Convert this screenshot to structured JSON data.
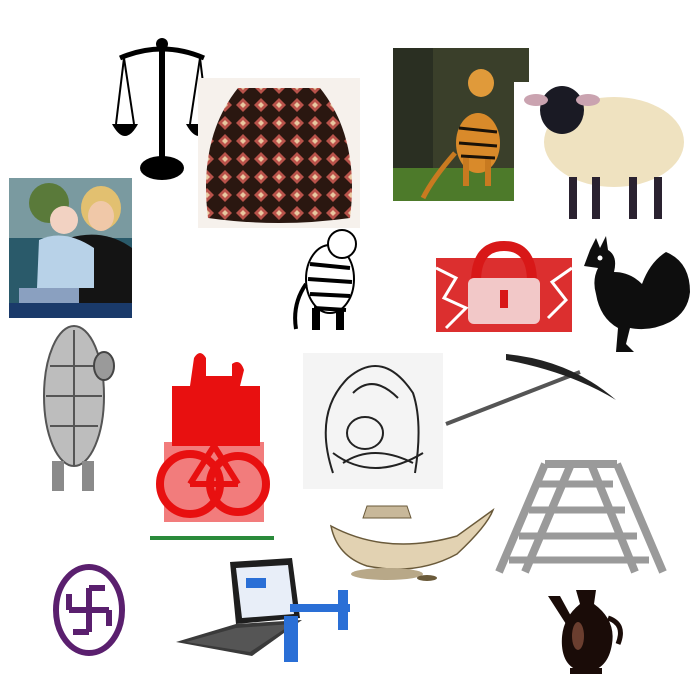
{
  "items": [
    {
      "name": "scales-of-justice-icon"
    },
    {
      "name": "patterned-cap-photo"
    },
    {
      "name": "tiger-photo"
    },
    {
      "name": "sheep-illustration"
    },
    {
      "name": "mother-and-baby-photo"
    },
    {
      "name": "tiger-sketch-icon"
    },
    {
      "name": "red-lock-icon"
    },
    {
      "name": "rooster-silhouette-icon"
    },
    {
      "name": "tortoise-sketch"
    },
    {
      "name": "red-bicycle-icon"
    },
    {
      "name": "mother-child-line-drawing"
    },
    {
      "name": "pickaxe-icon"
    },
    {
      "name": "oil-lamp-illustration"
    },
    {
      "name": "ladder-icon"
    },
    {
      "name": "swastika-emblem-icon"
    },
    {
      "name": "laptop-console-illustration"
    },
    {
      "name": "black-jug-icon"
    }
  ],
  "colors": {
    "lock_red": "#d81818",
    "bicycle_red": "#e81010",
    "emblem_purple": "#5a1f6e",
    "ladder_gray": "#9a9a9a",
    "laptop_blue": "#2a6fd6"
  }
}
